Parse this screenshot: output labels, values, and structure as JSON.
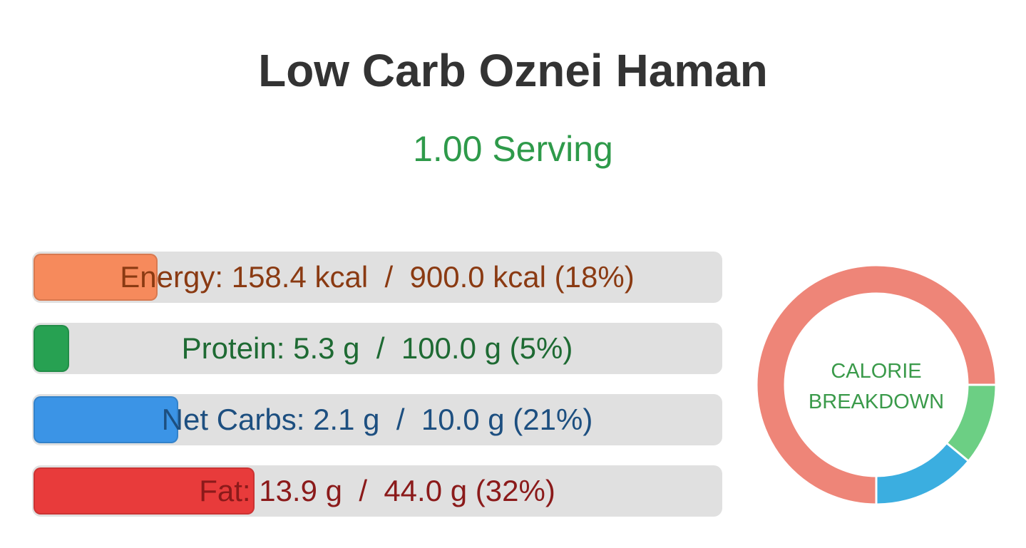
{
  "header": {
    "title": "Low Carb Oznei Haman",
    "subtitle": "1.00 Serving"
  },
  "nutrients": [
    {
      "text": "Energy: 158.4 kcal  /  900.0 kcal (18%)",
      "percent": 18,
      "color": "#f68a5c",
      "text_color": "#8a3a12"
    },
    {
      "text": "Protein: 5.3 g  /  100.0 g (5%)",
      "percent": 5,
      "color": "#27a152",
      "text_color": "#1e6a33"
    },
    {
      "text": "Net Carbs: 2.1 g  /  10.0 g (21%)",
      "percent": 21,
      "color": "#3b94e6",
      "text_color": "#1d4f80"
    },
    {
      "text": "Fat: 13.9 g  /  44.0 g (32%)",
      "percent": 32,
      "color": "#e83b3b",
      "text_color": "#8b1a1a"
    }
  ],
  "calorie_breakdown": {
    "label_lines": [
      "CALORIE",
      "BREAKDOWN"
    ],
    "segments": [
      {
        "value": 11,
        "color": "#6ccf84"
      },
      {
        "value": 14,
        "color": "#3baee0"
      },
      {
        "value": 75,
        "color": "#ee8578"
      }
    ]
  }
}
